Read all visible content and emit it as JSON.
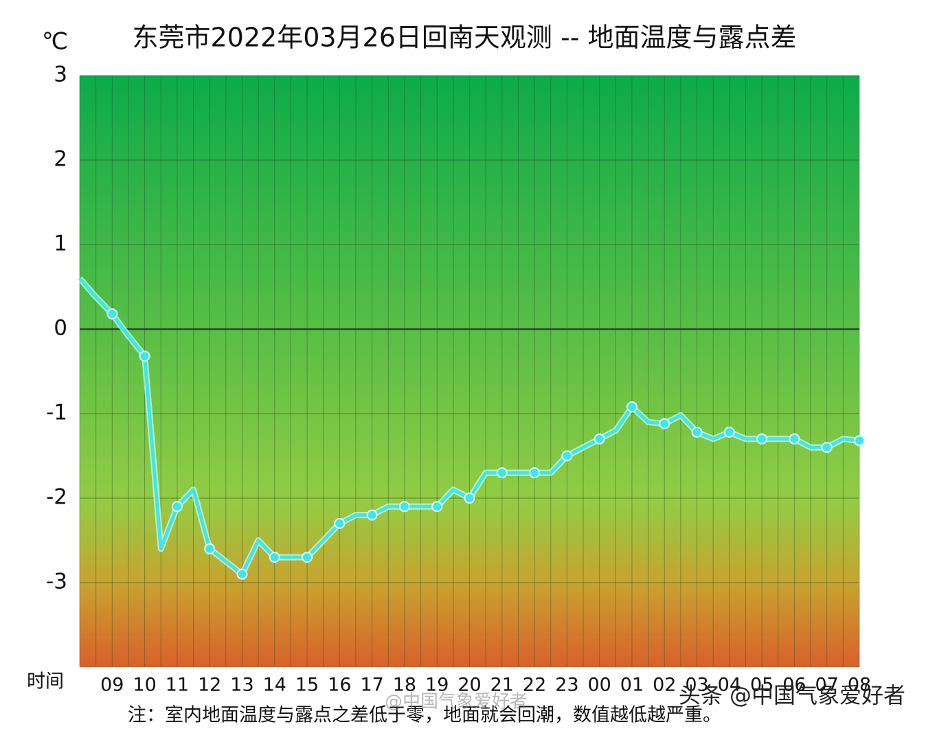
{
  "chart_data": {
    "type": "line",
    "title": "东莞市2022年03月26日回南天观测 -- 地面温度与露点差",
    "unit_label": "℃",
    "x_label": "时间",
    "note": "注：室内地面温度与露点之差低于零，地面就会回潮，数值越低越严重。",
    "watermarks": [
      "头条 @中国气象爱好者",
      "@中国气象爱好者"
    ],
    "categories": [
      null,
      null,
      "09",
      null,
      "10",
      null,
      "11",
      null,
      "12",
      null,
      "13",
      null,
      "14",
      null,
      "15",
      null,
      "16",
      null,
      "17",
      null,
      "18",
      null,
      "19",
      null,
      "20",
      null,
      "21",
      null,
      "22",
      null,
      "23",
      null,
      "00",
      null,
      "01",
      null,
      "02",
      null,
      "03",
      null,
      "04",
      null,
      "05",
      null,
      "06",
      null,
      "07",
      null,
      "08"
    ],
    "series": [
      {
        "name": "地面温度与露点差",
        "color": "#3ee6e8",
        "values": [
          0.6,
          0.38,
          0.18,
          -0.08,
          -0.32,
          -2.6,
          -2.1,
          -1.9,
          -2.6,
          -2.75,
          -2.9,
          -2.5,
          -2.7,
          -2.7,
          -2.7,
          -2.5,
          -2.3,
          -2.2,
          -2.2,
          -2.1,
          -2.1,
          -2.1,
          -2.1,
          -1.9,
          -2.0,
          -1.7,
          -1.7,
          -1.7,
          -1.7,
          -1.7,
          -1.5,
          -1.4,
          -1.3,
          -1.2,
          -0.92,
          -1.1,
          -1.12,
          -1.02,
          -1.22,
          -1.3,
          -1.22,
          -1.3,
          -1.3,
          -1.3,
          -1.3,
          -1.4,
          -1.4,
          -1.3,
          -1.32
        ]
      }
    ],
    "ylim": [
      -4,
      3
    ],
    "yticks": [
      3,
      2,
      1,
      0,
      -1,
      -2,
      -3
    ],
    "grid": true
  }
}
